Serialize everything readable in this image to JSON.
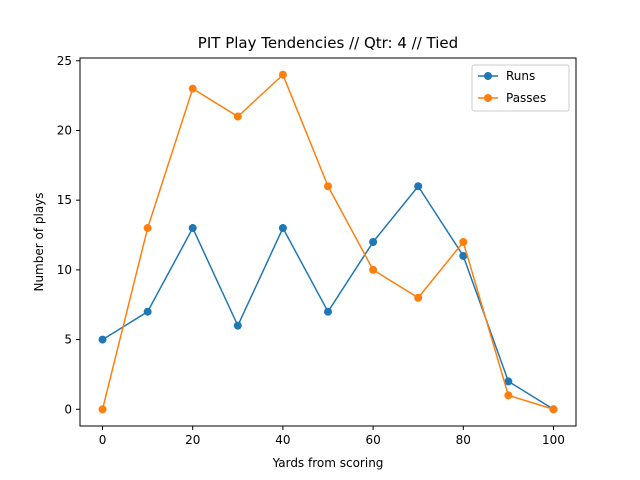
{
  "chart_data": {
    "type": "line",
    "title": "PIT Play Tendencies // Qtr: 4 // Tied",
    "xlabel": "Yards from scoring",
    "ylabel": "Number of plays",
    "x": [
      0,
      10,
      20,
      30,
      40,
      50,
      60,
      70,
      80,
      90,
      100
    ],
    "xlim": [
      -5,
      105
    ],
    "ylim": [
      -1.2,
      25.2
    ],
    "xticks": [
      0,
      20,
      40,
      60,
      80,
      100
    ],
    "yticks": [
      0,
      5,
      10,
      15,
      20,
      25
    ],
    "grid": false,
    "legend_position": "top-right",
    "series": [
      {
        "name": "Runs",
        "color": "#1f77b4",
        "values": [
          5,
          7,
          13,
          6,
          13,
          7,
          12,
          16,
          11,
          2,
          0
        ]
      },
      {
        "name": "Passes",
        "color": "#ff7f0e",
        "values": [
          0,
          13,
          23,
          21,
          24,
          16,
          10,
          8,
          12,
          1,
          0
        ]
      }
    ]
  }
}
